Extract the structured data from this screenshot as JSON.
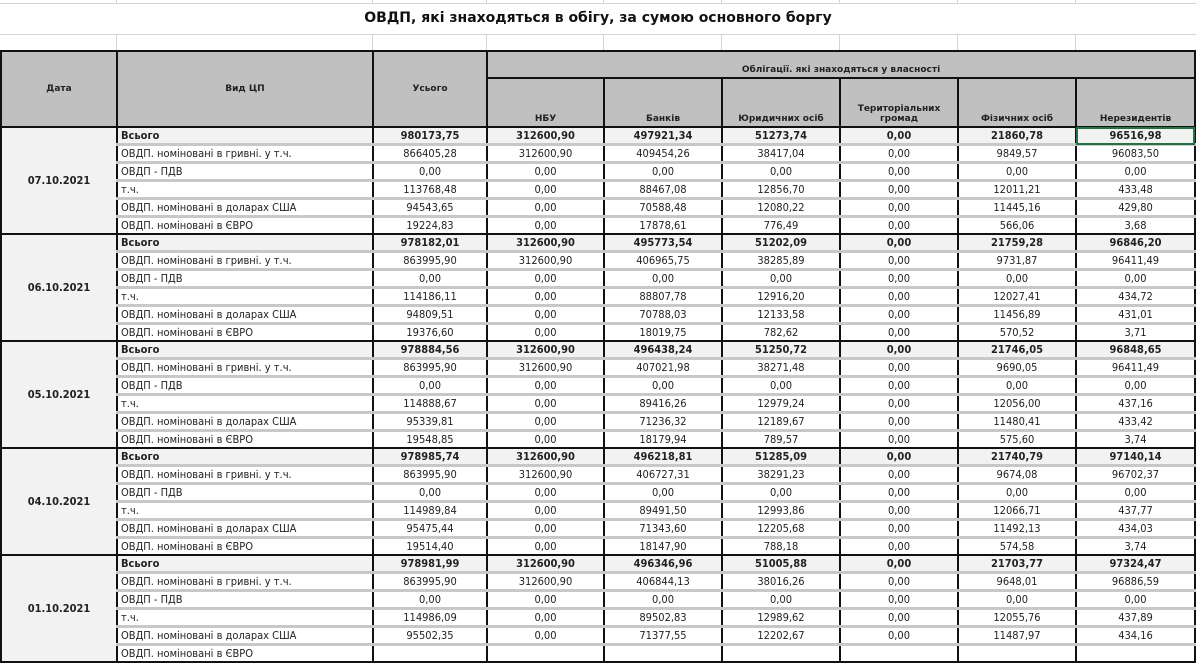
{
  "title": "ОВДП, які знаходяться в обігу, за сумою основного боргу",
  "header": {
    "date": "Дата",
    "type": "Вид ЦП",
    "total": "Усього",
    "owners_group": "Облігації. які знаходяться у власності",
    "owners": [
      "НБУ",
      "Банків",
      "Юридичних осіб",
      "Територіальних громад",
      "Фізичних осіб",
      "Нерезидентів"
    ]
  },
  "row_labels": [
    "Всього",
    "ОВДП. номіновані в гривні. у т.ч.",
    "ОВДП - ПДВ",
    "т.ч.",
    "ОВДП. номіновані в доларах США",
    "ОВДП. номіновані в ЄВРО"
  ],
  "selected_cell": "07.10.2021 / Всього / Нерезидентів",
  "accent_selection": "#217346",
  "blocks": [
    {
      "date": "07.10.2021",
      "rows": [
        [
          "980173,75",
          "312600,90",
          "497921,34",
          "51273,74",
          "0,00",
          "21860,78",
          "96516,98"
        ],
        [
          "866405,28",
          "312600,90",
          "409454,26",
          "38417,04",
          "0,00",
          "9849,57",
          "96083,50"
        ],
        [
          "0,00",
          "0,00",
          "0,00",
          "0,00",
          "0,00",
          "0,00",
          "0,00"
        ],
        [
          "113768,48",
          "0,00",
          "88467,08",
          "12856,70",
          "0,00",
          "12011,21",
          "433,48"
        ],
        [
          "94543,65",
          "0,00",
          "70588,48",
          "12080,22",
          "0,00",
          "11445,16",
          "429,80"
        ],
        [
          "19224,83",
          "0,00",
          "17878,61",
          "776,49",
          "0,00",
          "566,06",
          "3,68"
        ]
      ]
    },
    {
      "date": "06.10.2021",
      "rows": [
        [
          "978182,01",
          "312600,90",
          "495773,54",
          "51202,09",
          "0,00",
          "21759,28",
          "96846,20"
        ],
        [
          "863995,90",
          "312600,90",
          "406965,75",
          "38285,89",
          "0,00",
          "9731,87",
          "96411,49"
        ],
        [
          "0,00",
          "0,00",
          "0,00",
          "0,00",
          "0,00",
          "0,00",
          "0,00"
        ],
        [
          "114186,11",
          "0,00",
          "88807,78",
          "12916,20",
          "0,00",
          "12027,41",
          "434,72"
        ],
        [
          "94809,51",
          "0,00",
          "70788,03",
          "12133,58",
          "0,00",
          "11456,89",
          "431,01"
        ],
        [
          "19376,60",
          "0,00",
          "18019,75",
          "782,62",
          "0,00",
          "570,52",
          "3,71"
        ]
      ]
    },
    {
      "date": "05.10.2021",
      "rows": [
        [
          "978884,56",
          "312600,90",
          "496438,24",
          "51250,72",
          "0,00",
          "21746,05",
          "96848,65"
        ],
        [
          "863995,90",
          "312600,90",
          "407021,98",
          "38271,48",
          "0,00",
          "9690,05",
          "96411,49"
        ],
        [
          "0,00",
          "0,00",
          "0,00",
          "0,00",
          "0,00",
          "0,00",
          "0,00"
        ],
        [
          "114888,67",
          "0,00",
          "89416,26",
          "12979,24",
          "0,00",
          "12056,00",
          "437,16"
        ],
        [
          "95339,81",
          "0,00",
          "71236,32",
          "12189,67",
          "0,00",
          "11480,41",
          "433,42"
        ],
        [
          "19548,85",
          "0,00",
          "18179,94",
          "789,57",
          "0,00",
          "575,60",
          "3,74"
        ]
      ]
    },
    {
      "date": "04.10.2021",
      "rows": [
        [
          "978985,74",
          "312600,90",
          "496218,81",
          "51285,09",
          "0,00",
          "21740,79",
          "97140,14"
        ],
        [
          "863995,90",
          "312600,90",
          "406727,31",
          "38291,23",
          "0,00",
          "9674,08",
          "96702,37"
        ],
        [
          "0,00",
          "0,00",
          "0,00",
          "0,00",
          "0,00",
          "0,00",
          "0,00"
        ],
        [
          "114989,84",
          "0,00",
          "89491,50",
          "12993,86",
          "0,00",
          "12066,71",
          "437,77"
        ],
        [
          "95475,44",
          "0,00",
          "71343,60",
          "12205,68",
          "0,00",
          "11492,13",
          "434,03"
        ],
        [
          "19514,40",
          "0,00",
          "18147,90",
          "788,18",
          "0,00",
          "574,58",
          "3,74"
        ]
      ]
    },
    {
      "date": "01.10.2021",
      "rows": [
        [
          "978981,99",
          "312600,90",
          "496346,96",
          "51005,88",
          "0,00",
          "21703,77",
          "97324,47"
        ],
        [
          "863995,90",
          "312600,90",
          "406844,13",
          "38016,26",
          "0,00",
          "9648,01",
          "96886,59"
        ],
        [
          "0,00",
          "0,00",
          "0,00",
          "0,00",
          "0,00",
          "0,00",
          "0,00"
        ],
        [
          "114986,09",
          "0,00",
          "89502,83",
          "12989,62",
          "0,00",
          "12055,76",
          "437,89"
        ],
        [
          "95502,35",
          "0,00",
          "71377,55",
          "12202,67",
          "0,00",
          "11487,97",
          "434,16"
        ],
        [
          "",
          "",
          "",
          "",
          "",
          "",
          ""
        ]
      ]
    }
  ]
}
